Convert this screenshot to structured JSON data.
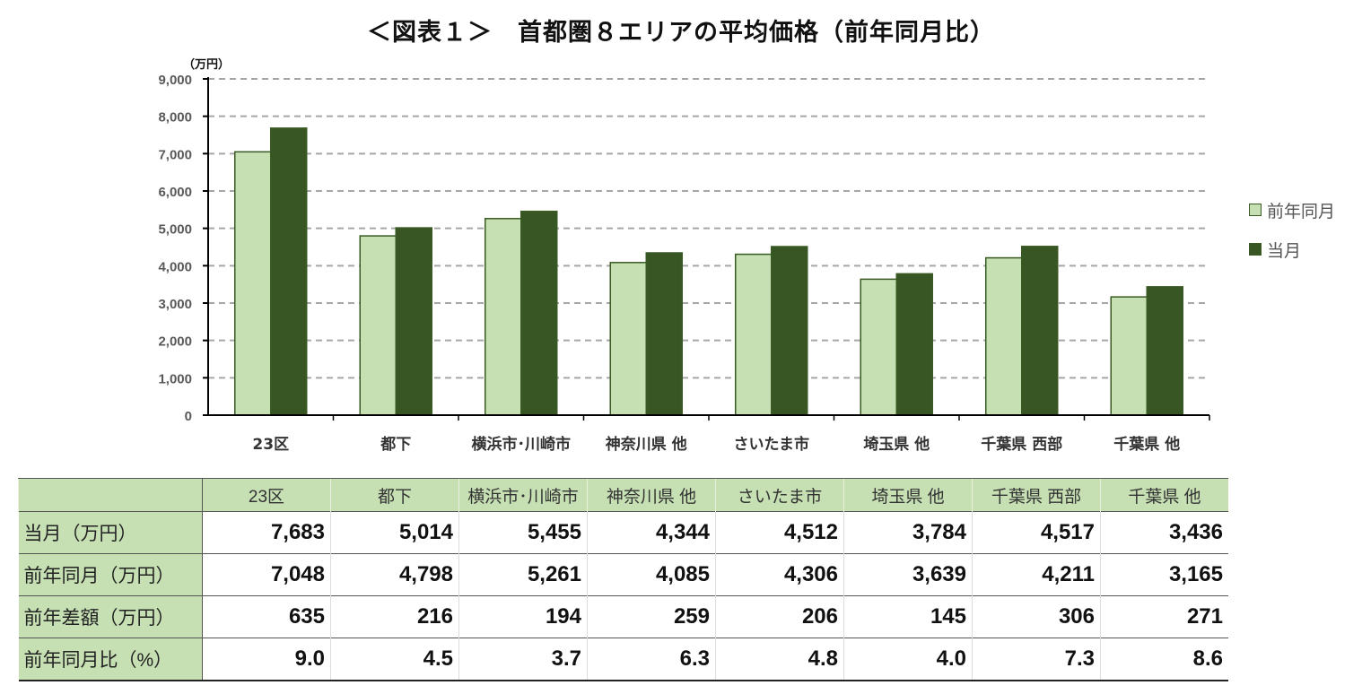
{
  "title": "＜図表１＞　首都圏８エリアの平均価格（前年同月比）",
  "chart_data": {
    "type": "bar",
    "title": "＜図表１＞　首都圏８エリアの平均価格（前年同月比）",
    "ylabel": "（万円）",
    "ylim": [
      0,
      9000
    ],
    "yticks": [
      "0",
      "1,000",
      "2,000",
      "3,000",
      "4,000",
      "5,000",
      "6,000",
      "7,000",
      "8,000",
      "9,000"
    ],
    "grid": true,
    "legend_position": "right",
    "categories": [
      "23区",
      "都下",
      "横浜市･川崎市",
      "神奈川県 他",
      "さいたま市",
      "埼玉県 他",
      "千葉県 西部",
      "千葉県 他"
    ],
    "series": [
      {
        "name": "前年同月",
        "color": "#c6e0b4",
        "values": [
          7048,
          4798,
          5261,
          4085,
          4306,
          3639,
          4211,
          3165
        ]
      },
      {
        "name": "当月",
        "color": "#375623",
        "values": [
          7683,
          5014,
          5455,
          4344,
          4512,
          3784,
          4517,
          3436
        ]
      }
    ]
  },
  "table": {
    "header": [
      "",
      "23区",
      "都下",
      "横浜市･川崎市",
      "神奈川県 他",
      "さいたま市",
      "埼玉県 他",
      "千葉県 西部",
      "千葉県 他"
    ],
    "rows": [
      {
        "label": "当月（万円）",
        "values": [
          "7,683",
          "5,014",
          "5,455",
          "4,344",
          "4,512",
          "3,784",
          "4,517",
          "3,436"
        ]
      },
      {
        "label": "前年同月（万円）",
        "values": [
          "7,048",
          "4,798",
          "5,261",
          "4,085",
          "4,306",
          "3,639",
          "4,211",
          "3,165"
        ]
      },
      {
        "label": "前年差額（万円）",
        "values": [
          "635",
          "216",
          "194",
          "259",
          "206",
          "145",
          "306",
          "271"
        ]
      },
      {
        "label": "前年同月比（%）",
        "values": [
          "9.0",
          "4.5",
          "3.7",
          "6.3",
          "4.8",
          "4.0",
          "7.3",
          "8.6"
        ]
      }
    ]
  }
}
